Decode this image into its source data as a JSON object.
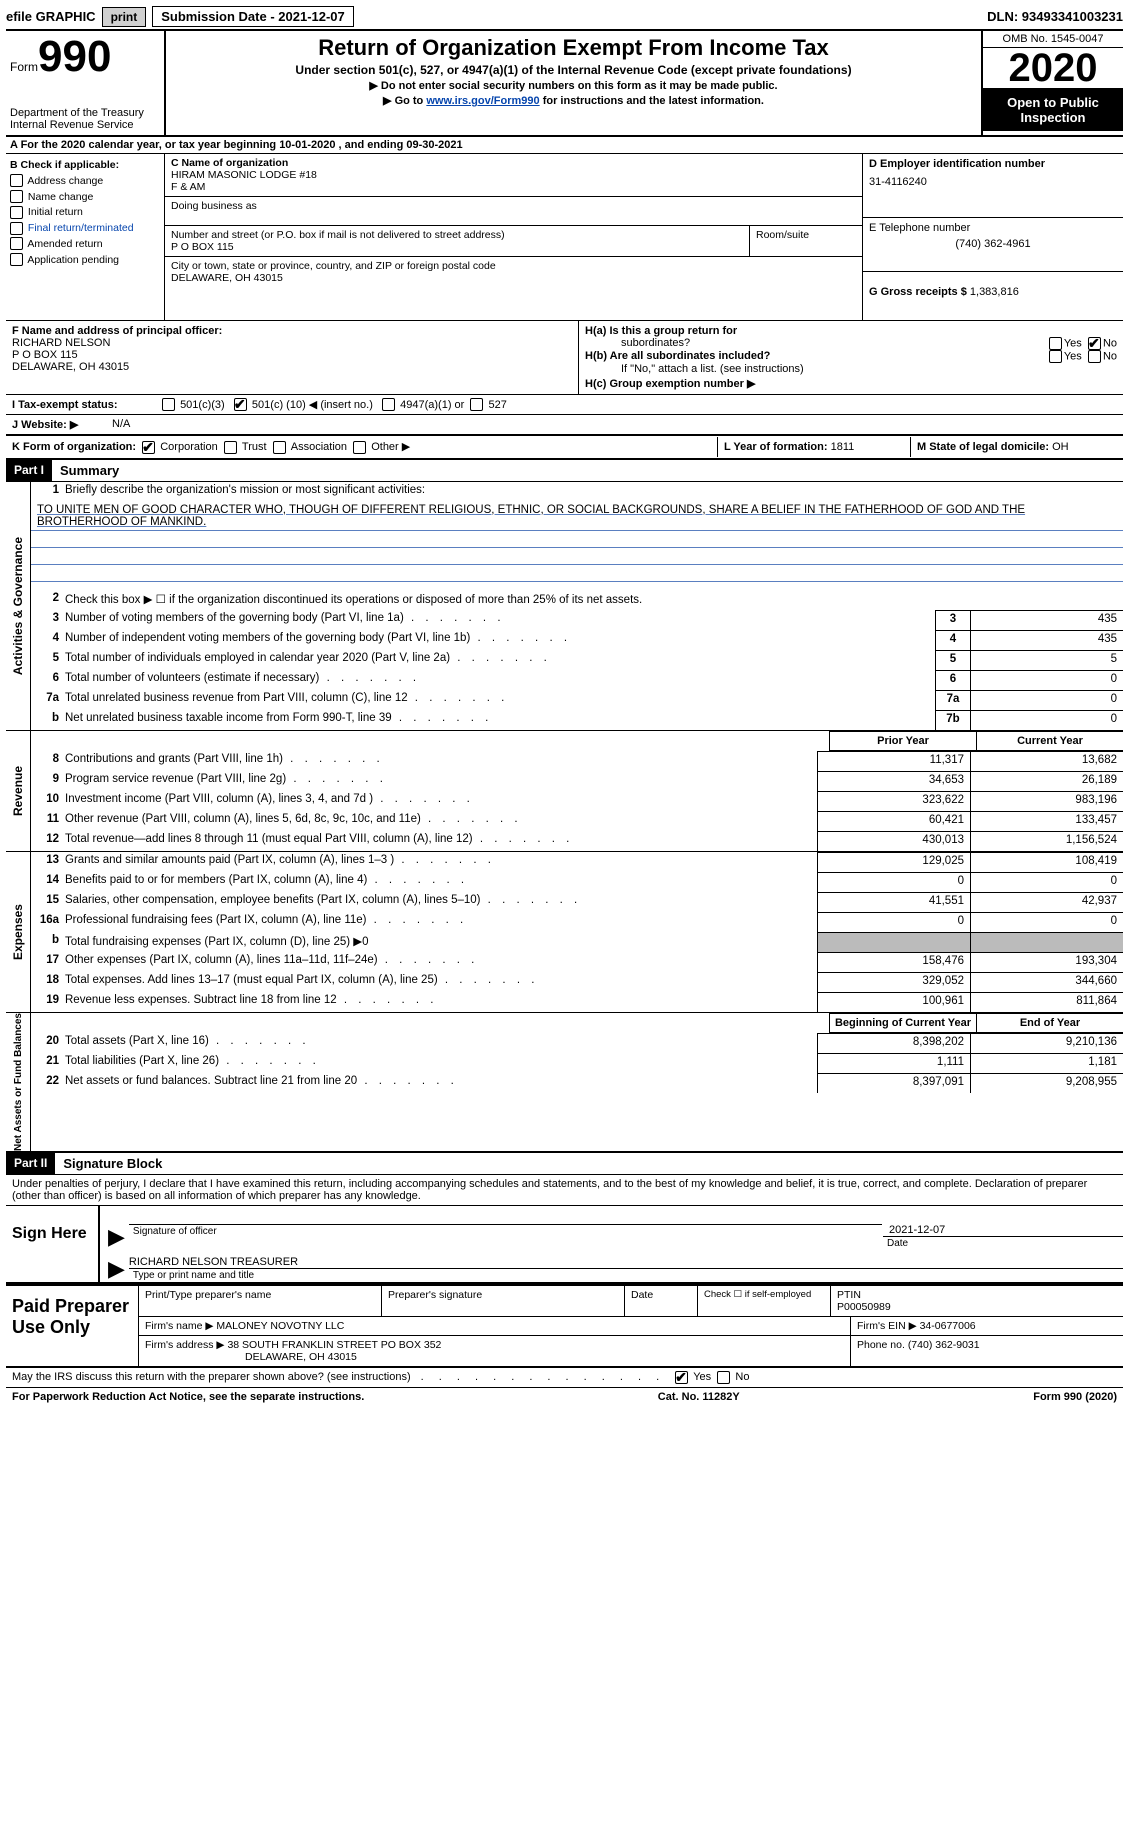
{
  "topbar": {
    "efile_label": "efile GRAPHIC",
    "print_btn": "print",
    "submission_label": "Submission Date - 2021-12-07",
    "dln_label": "DLN: 93493341003231"
  },
  "header": {
    "form_word": "Form",
    "form_number": "990",
    "dept": "Department of the Treasury\nInternal Revenue Service",
    "title": "Return of Organization Exempt From Income Tax",
    "subtitle": "Under section 501(c), 527, or 4947(a)(1) of the Internal Revenue Code (except private foundations)",
    "arrow1": "▶ Do not enter social security numbers on this form as it may be made public.",
    "arrow2_pre": "▶ Go to ",
    "arrow2_link": "www.irs.gov/Form990",
    "arrow2_post": " for instructions and the latest information.",
    "omb": "OMB No. 1545-0047",
    "year": "2020",
    "inspection": "Open to Public Inspection"
  },
  "line_a": "A For the 2020 calendar year, or tax year beginning 10-01-2020   , and ending 09-30-2021",
  "section_b": {
    "label": "B Check if applicable:",
    "items": [
      "Address change",
      "Name change",
      "Initial return",
      "Final return/terminated",
      "Amended return",
      "Application pending"
    ]
  },
  "section_c": {
    "name_label": "C Name of organization",
    "name1": "HIRAM MASONIC LODGE #18",
    "name2": "F & AM",
    "dba_label": "Doing business as",
    "dba": "",
    "street_label": "Number and street (or P.O. box if mail is not delivered to street address)",
    "room_label": "Room/suite",
    "street": "P O BOX 115",
    "city_label": "City or town, state or province, country, and ZIP or foreign postal code",
    "city": "DELAWARE, OH  43015"
  },
  "section_d": {
    "ein_label": "D Employer identification number",
    "ein": "31-4116240",
    "phone_label": "E Telephone number",
    "phone": "(740) 362-4961",
    "gross_label": "G Gross receipts $",
    "gross": "1,383,816"
  },
  "section_f": {
    "label": "F  Name and address of principal officer:",
    "name": "RICHARD NELSON",
    "addr1": "P O BOX 115",
    "addr2": "DELAWARE, OH  43015"
  },
  "section_h": {
    "ha_label": "H(a)  Is this a group return for",
    "ha_sub": "subordinates?",
    "hb_label": "H(b)  Are all subordinates included?",
    "hb_note": "If \"No,\" attach a list. (see instructions)",
    "hc_label": "H(c)  Group exemption number ▶",
    "yes": "Yes",
    "no": "No"
  },
  "section_i": {
    "label": "I   Tax-exempt status:",
    "opt1": "501(c)(3)",
    "opt2_pre": "501(c) (",
    "opt2_num": "10",
    "opt2_post": ") ◀ (insert no.)",
    "opt3": "4947(a)(1) or",
    "opt4": "527"
  },
  "section_j": {
    "label": "J   Website: ▶",
    "value": "N/A"
  },
  "section_k": {
    "label": "K Form of organization:",
    "corp": "Corporation",
    "trust": "Trust",
    "assoc": "Association",
    "other": "Other ▶"
  },
  "section_l": {
    "label": "L Year of formation:",
    "value": "1811"
  },
  "section_m": {
    "label": "M State of legal domicile:",
    "value": "OH"
  },
  "part1": {
    "header": "Part I",
    "title": "Summary",
    "line1_label": "Briefly describe the organization's mission or most significant activities:",
    "mission": "TO UNITE MEN OF GOOD CHARACTER WHO, THOUGH OF DIFFERENT RELIGIOUS, ETHNIC, OR SOCIAL BACKGROUNDS, SHARE A BELIEF IN THE FATHERHOOD OF GOD AND THE BROTHERHOOD OF MANKIND.",
    "line2": "Check this box ▶ ☐  if the organization discontinued its operations or disposed of more than 25% of its net assets.",
    "prior_year_h": "Prior Year",
    "current_year_h": "Current Year",
    "begin_year_h": "Beginning of Current Year",
    "end_year_h": "End of Year",
    "rows_gov": [
      {
        "n": "3",
        "d": "Number of voting members of the governing body (Part VI, line 1a)",
        "box": "3",
        "v": "435"
      },
      {
        "n": "4",
        "d": "Number of independent voting members of the governing body (Part VI, line 1b)",
        "box": "4",
        "v": "435"
      },
      {
        "n": "5",
        "d": "Total number of individuals employed in calendar year 2020 (Part V, line 2a)",
        "box": "5",
        "v": "5"
      },
      {
        "n": "6",
        "d": "Total number of volunteers (estimate if necessary)",
        "box": "6",
        "v": "0"
      },
      {
        "n": "7a",
        "d": "Total unrelated business revenue from Part VIII, column (C), line 12",
        "box": "7a",
        "v": "0"
      },
      {
        "n": "b",
        "d": "Net unrelated business taxable income from Form 990-T, line 39",
        "box": "7b",
        "v": "0"
      }
    ],
    "rows_rev": [
      {
        "n": "8",
        "d": "Contributions and grants (Part VIII, line 1h)",
        "p": "11,317",
        "c": "13,682"
      },
      {
        "n": "9",
        "d": "Program service revenue (Part VIII, line 2g)",
        "p": "34,653",
        "c": "26,189"
      },
      {
        "n": "10",
        "d": "Investment income (Part VIII, column (A), lines 3, 4, and 7d )",
        "p": "323,622",
        "c": "983,196"
      },
      {
        "n": "11",
        "d": "Other revenue (Part VIII, column (A), lines 5, 6d, 8c, 9c, 10c, and 11e)",
        "p": "60,421",
        "c": "133,457"
      },
      {
        "n": "12",
        "d": "Total revenue—add lines 8 through 11 (must equal Part VIII, column (A), line 12)",
        "p": "430,013",
        "c": "1,156,524"
      }
    ],
    "rows_exp": [
      {
        "n": "13",
        "d": "Grants and similar amounts paid (Part IX, column (A), lines 1–3 )",
        "p": "129,025",
        "c": "108,419"
      },
      {
        "n": "14",
        "d": "Benefits paid to or for members (Part IX, column (A), line 4)",
        "p": "0",
        "c": "0"
      },
      {
        "n": "15",
        "d": "Salaries, other compensation, employee benefits (Part IX, column (A), lines 5–10)",
        "p": "41,551",
        "c": "42,937"
      },
      {
        "n": "16a",
        "d": "Professional fundraising fees (Part IX, column (A), line 11e)",
        "p": "0",
        "c": "0"
      },
      {
        "n": "b",
        "d": "Total fundraising expenses (Part IX, column (D), line 25) ▶0",
        "p": "",
        "c": "",
        "shade": true
      },
      {
        "n": "17",
        "d": "Other expenses (Part IX, column (A), lines 11a–11d, 11f–24e)",
        "p": "158,476",
        "c": "193,304"
      },
      {
        "n": "18",
        "d": "Total expenses. Add lines 13–17 (must equal Part IX, column (A), line 25)",
        "p": "329,052",
        "c": "344,660"
      },
      {
        "n": "19",
        "d": "Revenue less expenses. Subtract line 18 from line 12",
        "p": "100,961",
        "c": "811,864"
      }
    ],
    "rows_net": [
      {
        "n": "20",
        "d": "Total assets (Part X, line 16)",
        "p": "8,398,202",
        "c": "9,210,136"
      },
      {
        "n": "21",
        "d": "Total liabilities (Part X, line 26)",
        "p": "1,111",
        "c": "1,181"
      },
      {
        "n": "22",
        "d": "Net assets or fund balances. Subtract line 21 from line 20",
        "p": "8,397,091",
        "c": "9,208,955"
      }
    ],
    "vtabs": {
      "gov": "Activities & Governance",
      "rev": "Revenue",
      "exp": "Expenses",
      "net": "Net Assets or Fund Balances"
    }
  },
  "part2": {
    "header": "Part II",
    "title": "Signature Block",
    "penalties": "Under penalties of perjury, I declare that I have examined this return, including accompanying schedules and statements, and to the best of my knowledge and belief, it is true, correct, and complete. Declaration of preparer (other than officer) is based on all information of which preparer has any knowledge."
  },
  "sign": {
    "label": "Sign Here",
    "sig_of_officer": "Signature of officer",
    "date_label": "Date",
    "date": "2021-12-07",
    "name": "RICHARD NELSON TREASURER",
    "name_label": "Type or print name and title"
  },
  "preparer": {
    "label": "Paid Preparer Use Only",
    "h_name": "Print/Type preparer's name",
    "h_sig": "Preparer's signature",
    "h_date": "Date",
    "h_check": "Check ☐ if self-employed",
    "h_ptin": "PTIN",
    "ptin": "P00050989",
    "firm_name_label": "Firm's name    ▶",
    "firm_name": "MALONEY NOVOTNY LLC",
    "firm_ein_label": "Firm's EIN ▶",
    "firm_ein": "34-0677006",
    "firm_addr_label": "Firm's address ▶",
    "firm_addr1": "38 SOUTH FRANKLIN STREET PO BOX 352",
    "firm_addr2": "DELAWARE, OH  43015",
    "phone_label": "Phone no.",
    "phone": "(740) 362-9031"
  },
  "footer": {
    "discuss": "May the IRS discuss this return with the preparer shown above? (see instructions)",
    "yes": "Yes",
    "no": "No",
    "pra": "For Paperwork Reduction Act Notice, see the separate instructions.",
    "cat": "Cat. No. 11282Y",
    "form": "Form 990 (2020)"
  }
}
